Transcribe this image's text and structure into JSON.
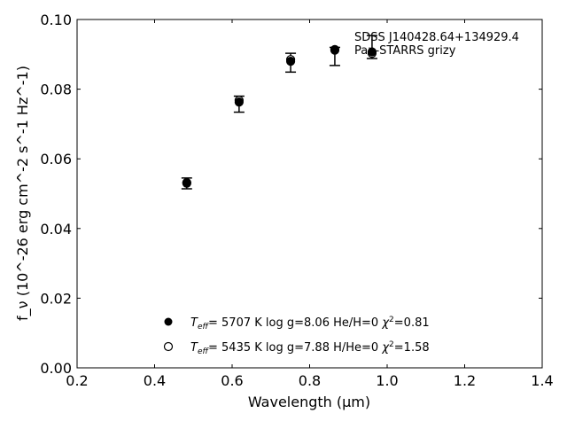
{
  "chart_data": {
    "type": "scatter",
    "title": "",
    "xlabel": "Wavelength (μm)",
    "ylabel": "f_ν (10^-26 erg cm^-2 s^-1 Hz^-1)",
    "xlim": [
      0.2,
      1.4
    ],
    "ylim": [
      0.0,
      0.1
    ],
    "xticks": [
      "0.2",
      "0.4",
      "0.6",
      "0.8",
      "1.0",
      "1.2",
      "1.4"
    ],
    "yticks": [
      "0.00",
      "0.02",
      "0.04",
      "0.06",
      "0.08",
      "0.10"
    ],
    "grid": false,
    "annotation": [
      "SDSS J140428.64+134929.4",
      "Pan-STARRS grizy"
    ],
    "observed": {
      "x": [
        0.483,
        0.618,
        0.751,
        0.865,
        0.961
      ],
      "y": [
        0.053,
        0.0757,
        0.0876,
        0.0894,
        0.0921
      ],
      "yerr_low": [
        0.0514,
        0.0734,
        0.0849,
        0.0868,
        0.0888
      ],
      "yerr_high": [
        0.0545,
        0.078,
        0.0903,
        0.092,
        0.0954
      ]
    },
    "series": [
      {
        "name": "model1",
        "marker": "filled",
        "teff": "5707 K",
        "logg": "log g=8.06",
        "comp": "He/H=0",
        "chi2": "=0.81",
        "x": [
          0.483,
          0.618,
          0.751,
          0.865,
          0.961
        ],
        "y": [
          0.053,
          0.0763,
          0.088,
          0.0912,
          0.0907
        ]
      },
      {
        "name": "model2",
        "marker": "open",
        "teff": "5435 K",
        "logg": "log g=7.88",
        "comp": "H/He=0",
        "chi2": "=1.58",
        "x": [
          0.483,
          0.618,
          0.751,
          0.865,
          0.961
        ],
        "y": [
          0.0532,
          0.0768,
          0.0885,
          0.0914,
          0.0903
        ]
      }
    ],
    "legend_placement": "lower-center"
  }
}
